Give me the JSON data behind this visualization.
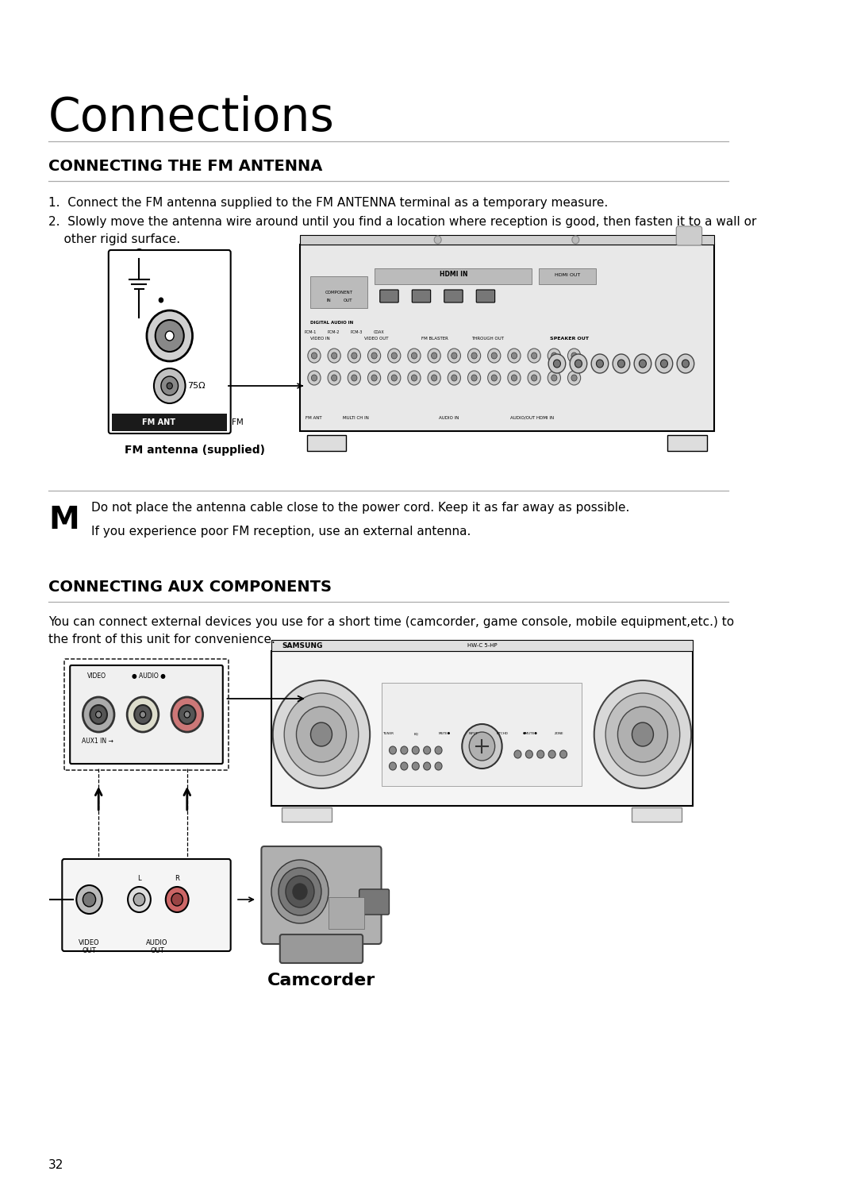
{
  "page_bg": "#ffffff",
  "page_number": "32",
  "main_title": "Connections",
  "section1_title": "CONNECTING THE FM ANTENNA",
  "section1_item1": "1.  Connect the FM antenna supplied to the FM ANTENNA terminal as a temporary measure.",
  "section1_item2a": "2.  Slowly move the antenna wire around until you find a location where reception is good, then fasten it to a wall or",
  "section1_item2b": "    other rigid surface.",
  "fm_antenna_label": "FM antenna (supplied)",
  "note_letter": "M",
  "note_line1": "Do not place the antenna cable close to the power cord. Keep it as far away as possible.",
  "note_line2": "If you experience poor FM reception, use an external antenna.",
  "section2_title": "CONNECTING AUX COMPONENTS",
  "section2_body1": "You can connect external devices you use for a short time (camcorder, game console, mobile equipment,etc.) to",
  "section2_body2": "the front of this unit for convenience.",
  "camcorder_label": "Camcorder",
  "title_fontsize": 42,
  "section_title_fontsize": 14,
  "body_fontsize": 11,
  "note_fontsize": 11,
  "page_num_fontsize": 11,
  "label_fontsize": 10,
  "camcorder_label_fontsize": 16
}
